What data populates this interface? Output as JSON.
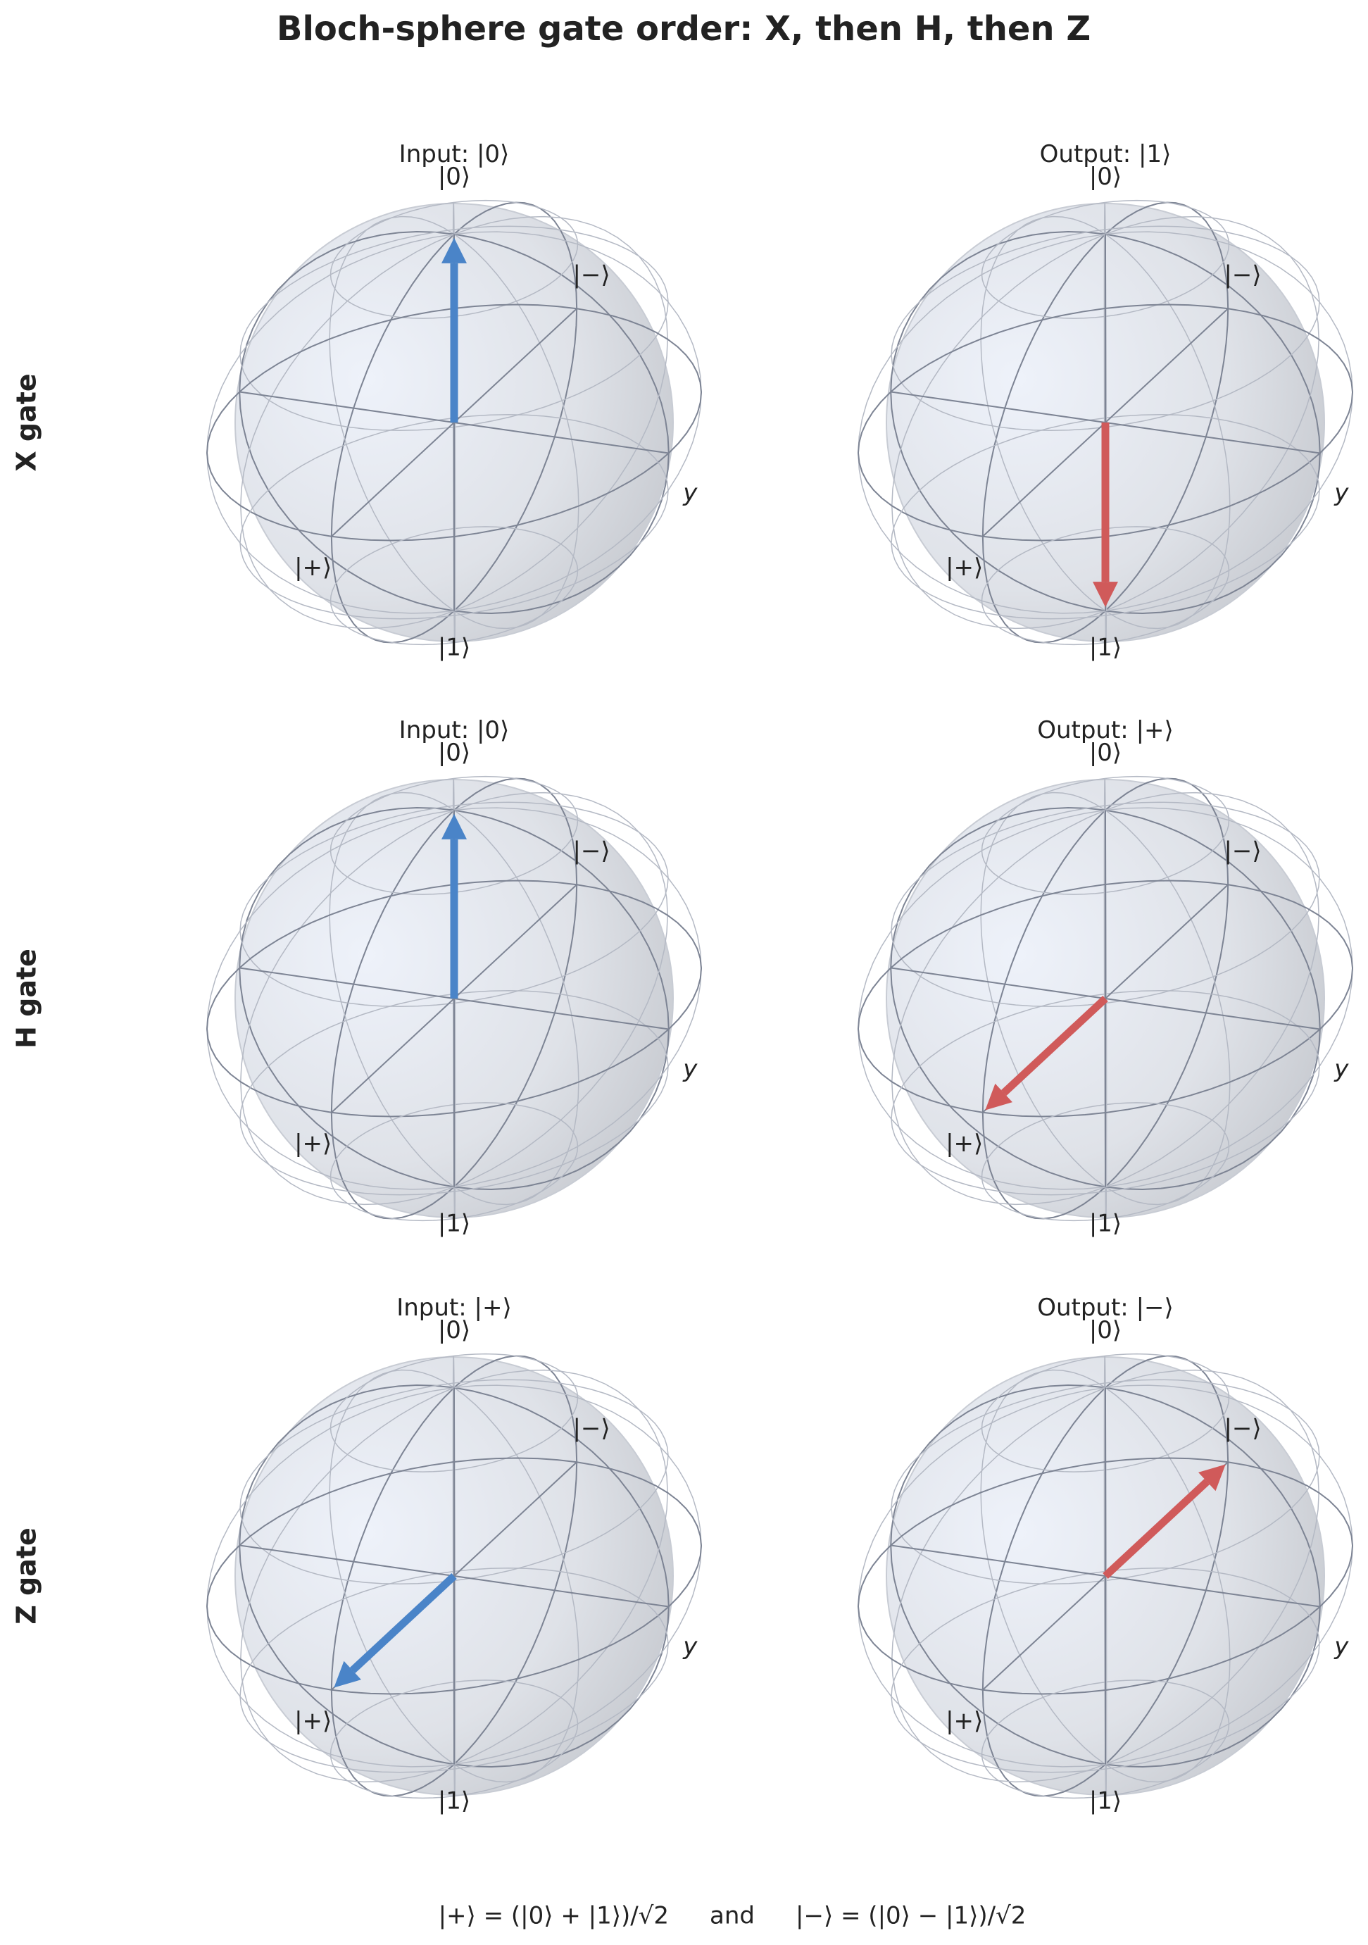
{
  "title": "Bloch-sphere gate order: X, then H, then Z",
  "axis_labels": {
    "top": "|0⟩",
    "bottom": "|1⟩",
    "plus": "|+⟩",
    "minus": "|−⟩",
    "y": "y"
  },
  "rows": [
    {
      "label": "X gate",
      "panels": [
        {
          "title": "Input: |0⟩"
        },
        {
          "title": "Output: |1⟩"
        }
      ]
    },
    {
      "label": "H gate",
      "panels": [
        {
          "title": "Input: |0⟩"
        },
        {
          "title": "Output: |+⟩"
        }
      ]
    },
    {
      "label": "Z gate",
      "panels": [
        {
          "title": "Input: |+⟩"
        },
        {
          "title": "Output: |−⟩"
        }
      ]
    }
  ],
  "footnote": [
    "|+⟩ = (|0⟩ + |1⟩)/√2",
    "and",
    "|−⟩ = (|0⟩ − |1⟩)/√2"
  ]
}
